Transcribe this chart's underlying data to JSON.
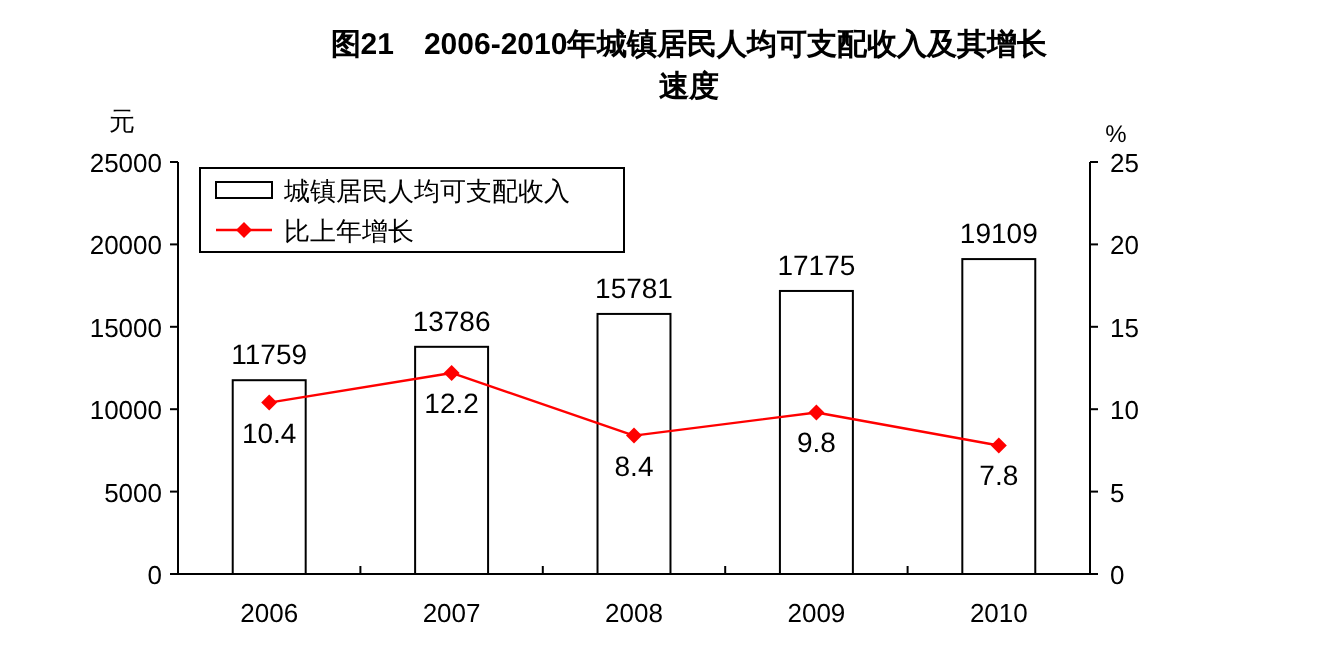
{
  "chart_data": {
    "type": "bar",
    "title": "图21　2006-2010年城镇居民人均可支配收入及其增长速度",
    "ylabel": "元",
    "y2label": "%",
    "categories": [
      "2006",
      "2007",
      "2008",
      "2009",
      "2010"
    ],
    "series": [
      {
        "name": "城镇居民人均可支配收入",
        "color": "#ffffff",
        "values": [
          11759,
          13786,
          15781,
          17175,
          19109
        ]
      },
      {
        "name": "比上年增长",
        "type": "line",
        "axis": "y2",
        "color": "#ff0000",
        "marker": "diamond",
        "values": [
          10.4,
          12.2,
          8.4,
          9.8,
          7.8
        ]
      }
    ],
    "ylim": [
      0,
      25000
    ],
    "yticks": [
      0,
      5000,
      10000,
      15000,
      20000,
      25000
    ],
    "y2lim": [
      0,
      25
    ],
    "y2ticks": [
      0,
      5,
      10,
      15,
      20,
      25
    ],
    "data_labels": true,
    "legend": "top left",
    "grid": false
  }
}
